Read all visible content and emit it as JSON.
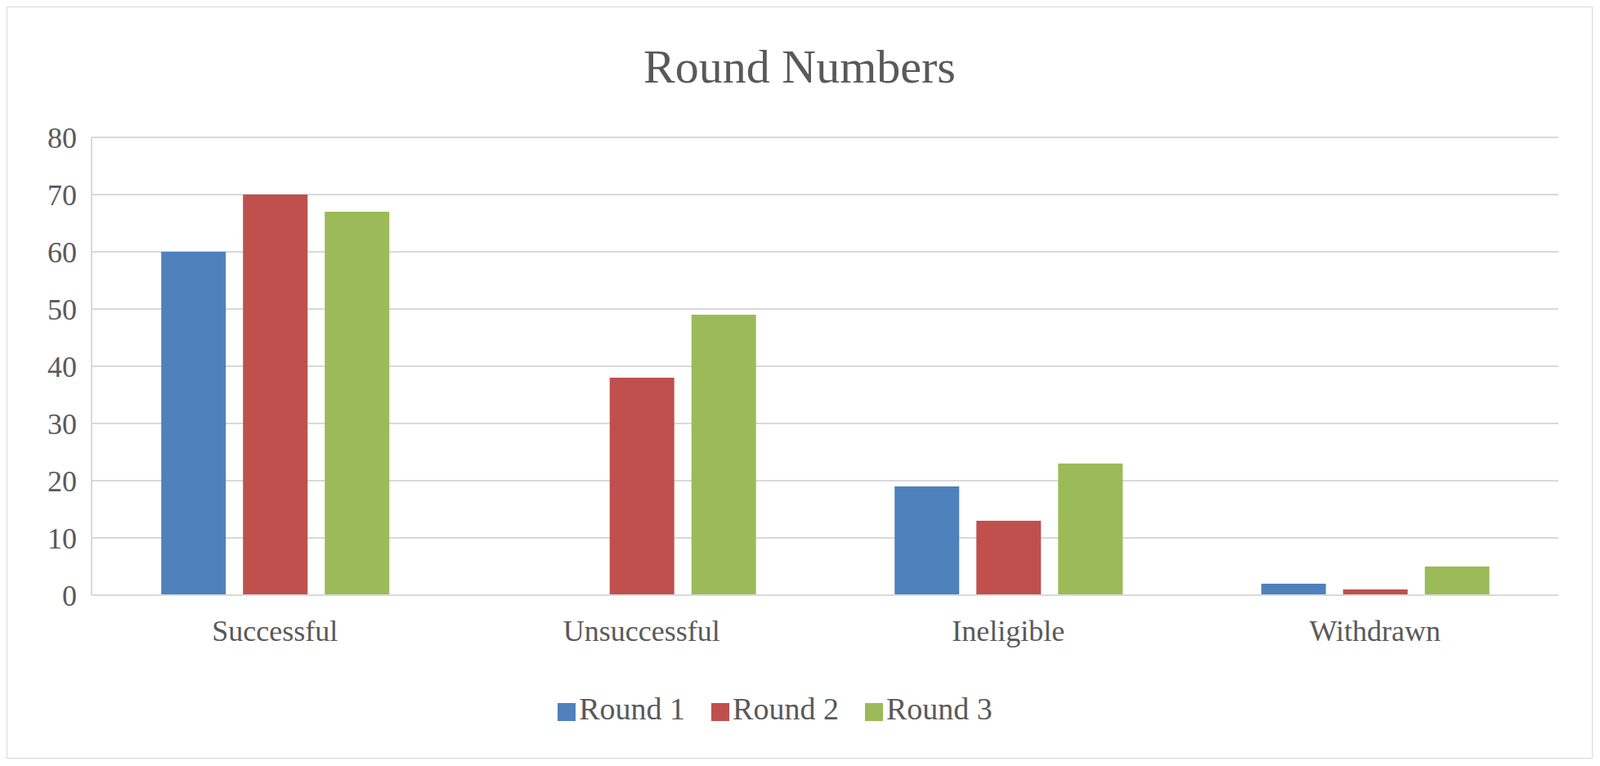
{
  "chart_data": {
    "type": "bar",
    "title": "Round Numbers",
    "categories": [
      "Successful",
      "Unsuccessful",
      "Ineligible",
      "Withdrawn"
    ],
    "series": [
      {
        "name": "Round 1",
        "color": "#4f81bd",
        "values": [
          60,
          0,
          19,
          2
        ]
      },
      {
        "name": "Round 2",
        "color": "#c0504d",
        "values": [
          70,
          38,
          13,
          1
        ]
      },
      {
        "name": "Round 3",
        "color": "#9bbb59",
        "values": [
          67,
          49,
          23,
          5
        ]
      }
    ],
    "ylim": [
      0,
      80
    ],
    "yticks": [
      0,
      10,
      20,
      30,
      40,
      50,
      60,
      70,
      80
    ],
    "grid": true,
    "legend": "bottom"
  }
}
